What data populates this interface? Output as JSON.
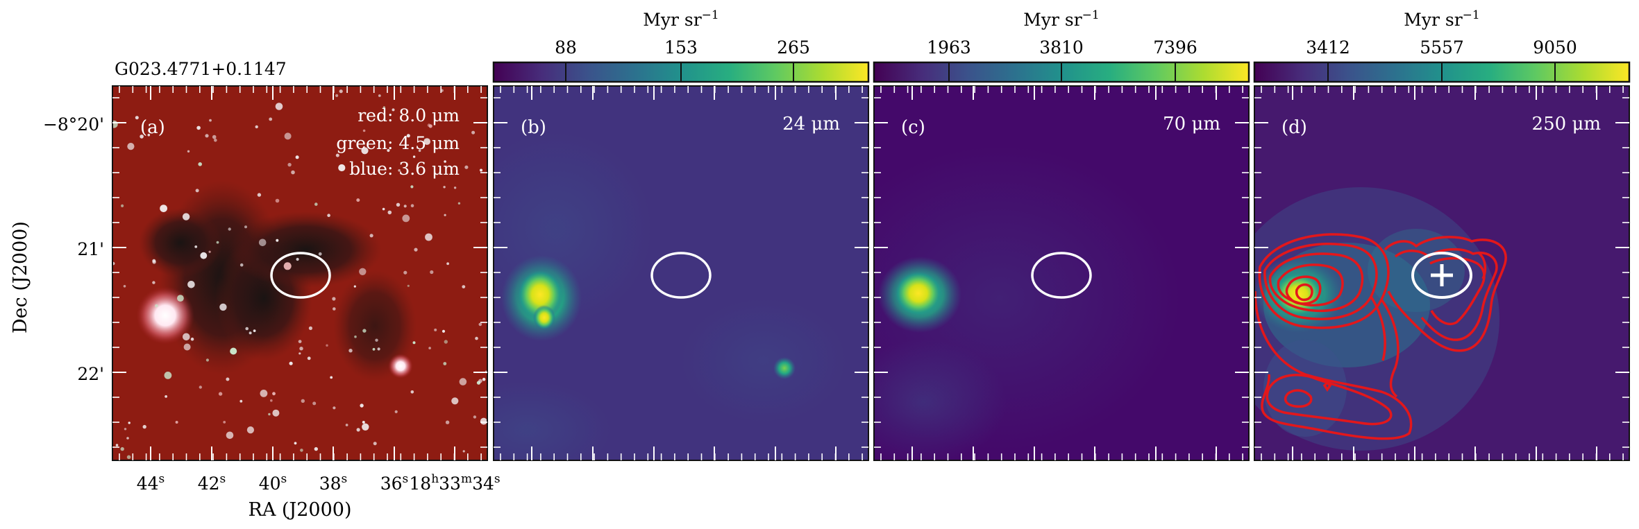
{
  "figure": {
    "source_name": "G023.4771+0.1147",
    "ra_label": "RA (J2000)",
    "dec_label": "Dec (J2000)",
    "ra_ticks": [
      "44",
      "42",
      "40",
      "38",
      "36",
      "18",
      "33",
      "34"
    ],
    "ra_tick_units": {
      "h": "h",
      "m": "m",
      "s": "s"
    },
    "dec_ticks": [
      "−8°20'",
      "21'",
      "22'"
    ],
    "colorbar_unit": "Myr sr",
    "colorbar_unit_exp": "−1"
  },
  "panels": [
    {
      "id": "a",
      "letter": "(a)",
      "legend": [
        "red: 8.0 μm",
        "green: 4.5 μm",
        "blue: 3.6 μm"
      ],
      "background_color": "#8e1c12"
    },
    {
      "id": "b",
      "letter": "(b)",
      "wavelength": "24 μm",
      "colorbar_ticks": [
        "88",
        "153",
        "265"
      ]
    },
    {
      "id": "c",
      "letter": "(c)",
      "wavelength": "70 μm",
      "colorbar_ticks": [
        "1963",
        "3810",
        "7396"
      ]
    },
    {
      "id": "d",
      "letter": "(d)",
      "wavelength": "250 μm",
      "colorbar_ticks": [
        "3412",
        "5557",
        "9050"
      ]
    }
  ],
  "colors": {
    "viridis_dark": "#440154",
    "viridis_mid": "#21918c",
    "viridis_light": "#fde725",
    "contour": "#e3171b",
    "marker": "#ffffff"
  }
}
